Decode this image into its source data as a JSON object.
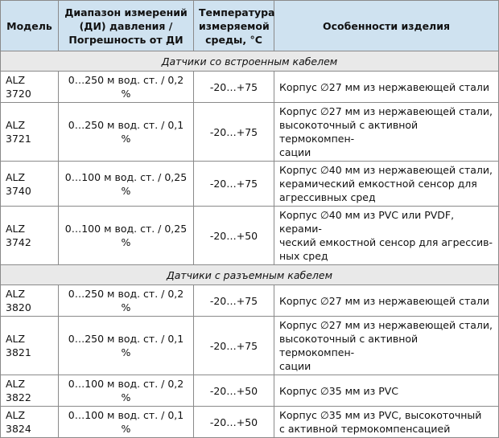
{
  "table": {
    "header": [
      [
        "Модель"
      ],
      [
        "Диапазон измерений",
        "(ДИ) давления /",
        "Погрешность от ДИ"
      ],
      [
        "Температура",
        "измеряемой",
        "среды, °С"
      ],
      [
        "Особенности изделия"
      ]
    ],
    "sections": [
      {
        "title": "Датчики со встроенным кабелем",
        "rows": [
          {
            "model": "ALZ 3720",
            "range": "0…250 м вод. ст. / 0,2 %",
            "temp": "-20…+75",
            "features": [
              "Корпус ∅27 мм из нержавеющей стали"
            ]
          },
          {
            "model": "ALZ 3721",
            "range": "0…250 м вод. ст. / 0,1 %",
            "temp": "-20…+75",
            "features": [
              "Корпус ∅27 мм из нержавеющей стали,",
              "высокоточный с активной термокомпен-",
              "сации"
            ]
          },
          {
            "model": "ALZ 3740",
            "range": "0…100 м вод. ст. / 0,25 %",
            "temp": "-20…+75",
            "features": [
              "Корпус ∅40 мм из нержавеющей стали,",
              "керамический емкостной сенсор для",
              "агрессивных сред"
            ]
          },
          {
            "model": "ALZ 3742",
            "range": "0…100 м вод. ст. / 0,25 %",
            "temp": "-20…+50",
            "features": [
              "Корпус ∅40 мм из PVC или PVDF, керами-",
              "ческий емкостной сенсор для агрессив-",
              "ных сред"
            ]
          }
        ]
      },
      {
        "title": "Датчики с разъемным кабелем",
        "rows": [
          {
            "model": "ALZ 3820",
            "range": "0…250 м вод. ст. / 0,2 %",
            "temp": "-20…+75",
            "features": [
              "Корпус ∅27 мм из нержавеющей стали"
            ]
          },
          {
            "model": "ALZ 3821",
            "range": "0…250 м вод. ст. / 0,1 %",
            "temp": "-20…+75",
            "features": [
              "Корпус ∅27 мм из нержавеющей стали,",
              "высокоточный с активной термокомпен-",
              "сации"
            ]
          },
          {
            "model": "ALZ 3822",
            "range": "0…100 м вод. ст. / 0,2 %",
            "temp": "-20…+50",
            "features": [
              "Корпус ∅35 мм из PVC"
            ]
          },
          {
            "model": "ALZ 3824",
            "range": "0…100 м вод. ст. / 0,1 %",
            "temp": "-20…+50",
            "features": [
              "Корпус ∅35 мм из PVC, высокоточный",
              "с активной термокомпенсацией"
            ]
          }
        ]
      }
    ]
  }
}
